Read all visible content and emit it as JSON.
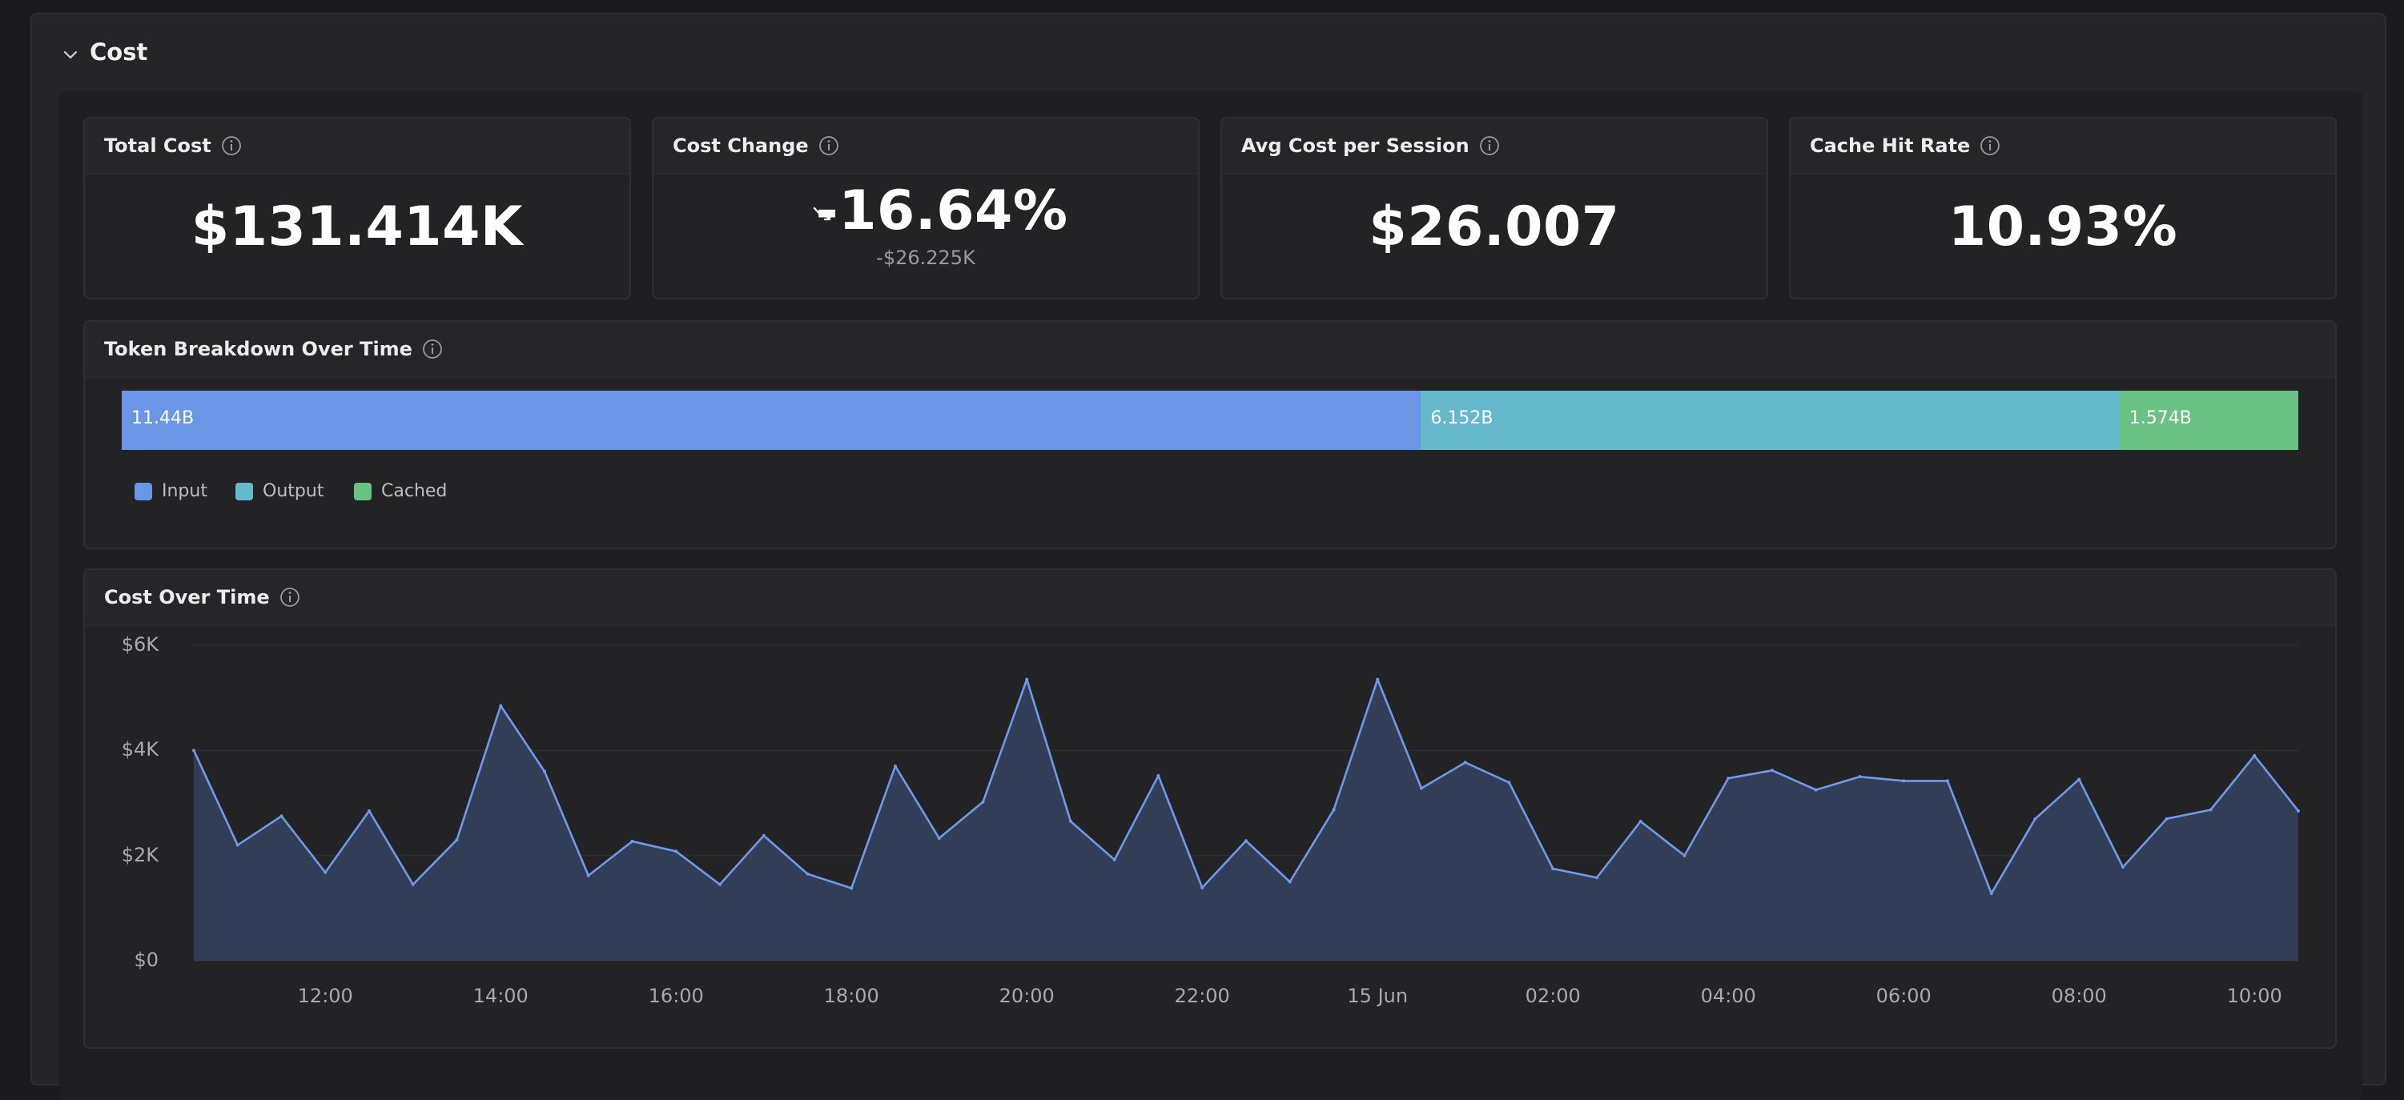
{
  "section": {
    "title": "Cost"
  },
  "stats": {
    "total_cost": {
      "title": "Total Cost",
      "value": "$131.414K"
    },
    "cost_change": {
      "title": "Cost Change",
      "value": "-16.64%",
      "sub": "-$26.225K",
      "trend_icon": "trend-down-icon"
    },
    "avg_cost": {
      "title": "Avg Cost per Session",
      "value": "$26.007"
    },
    "cache_hit": {
      "title": "Cache Hit Rate",
      "value": "10.93%"
    }
  },
  "token_breakdown": {
    "title": "Token Breakdown Over Time",
    "segments": [
      {
        "label": "11.44B",
        "name": "Input",
        "value": 11.44,
        "color": "#6b96e6"
      },
      {
        "label": "6.152B",
        "name": "Output",
        "value": 6.152,
        "color": "#66b8cc"
      },
      {
        "label": "1.574B",
        "name": "Cached",
        "value": 1.574,
        "color": "#69c184"
      }
    ]
  },
  "chart_data": {
    "type": "area",
    "title": "Cost Over Time",
    "ylim": [
      0,
      6000
    ],
    "yticks": [
      "$0",
      "$2K",
      "$4K",
      "$6K"
    ],
    "ytick_values": [
      0,
      2000,
      4000,
      6000
    ],
    "xtick_labels": [
      "12:00",
      "14:00",
      "16:00",
      "18:00",
      "20:00",
      "22:00",
      "15 Jun",
      "02:00",
      "04:00",
      "06:00",
      "08:00",
      "10:00"
    ],
    "xtick_index": [
      3,
      7,
      11,
      15,
      19,
      23,
      27,
      31,
      35,
      39,
      43,
      47
    ],
    "grid": true,
    "line_color": "#6f9ae8",
    "fill_color": "#34405a",
    "values": [
      4000,
      2200,
      2750,
      1680,
      2850,
      1450,
      2300,
      4850,
      3600,
      1620,
      2270,
      2080,
      1450,
      2380,
      1650,
      1380,
      3700,
      2330,
      3020,
      5350,
      2650,
      1920,
      3520,
      1390,
      2280,
      1500,
      2870,
      5350,
      3280,
      3770,
      3390,
      1750,
      1580,
      2650,
      2000,
      3470,
      3620,
      3250,
      3500,
      3420,
      3420,
      1280,
      2700,
      3450,
      1780,
      2700,
      2870,
      3900,
      2850
    ]
  },
  "colors": {
    "background": "#1b1b1d",
    "panel": "#252527",
    "card": "#232325",
    "text": "#ffffff",
    "muted": "#9a9aa0"
  }
}
